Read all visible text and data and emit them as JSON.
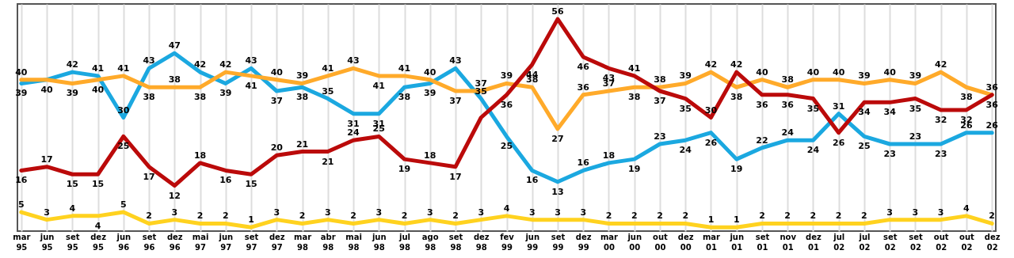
{
  "chart_data": {
    "type": "line",
    "categories": [
      "mar 95",
      "jun 95",
      "set 95",
      "dez 95",
      "jun 96",
      "set 96",
      "dez 96",
      "mai 97",
      "jun 97",
      "set 97",
      "dez 97",
      "mar 98",
      "abr 98",
      "mai 98",
      "jun 98",
      "jul 98",
      "ago 98",
      "set 98",
      "dez 98",
      "fev 99",
      "jun 99",
      "set 99",
      "dez 99",
      "mar 00",
      "jun 00",
      "out 00",
      "dez 00",
      "mar 01",
      "jun 01",
      "set 01",
      "nov 01",
      "dez 01",
      "jul 02",
      "jul 02",
      "set 02",
      "set 02",
      "out 02",
      "out 02",
      "dez 02"
    ],
    "series": [
      {
        "color": "#1ba8e0",
        "values": [
          39,
          40,
          42,
          41,
          30,
          43,
          47,
          42,
          39,
          43,
          37,
          38,
          35,
          31,
          31,
          38,
          39,
          43,
          35,
          25,
          16,
          13,
          16,
          18,
          19,
          23,
          24,
          26,
          19,
          22,
          24,
          24,
          31,
          25,
          23,
          23,
          23,
          26,
          26
        ]
      },
      {
        "color": "#ffaa2a",
        "values": [
          40,
          40,
          39,
          40,
          41,
          38,
          38,
          38,
          42,
          41,
          40,
          39,
          41,
          43,
          41,
          41,
          40,
          37,
          37,
          39,
          38,
          27,
          36,
          37,
          38,
          38,
          39,
          42,
          38,
          40,
          38,
          40,
          40,
          39,
          40,
          39,
          42,
          38,
          36
        ],
        "value_labels": [
          "40",
          null,
          "39",
          "40",
          "41",
          "38",
          "38",
          "38",
          "42",
          "41",
          "40",
          "39",
          "41",
          "43",
          "41",
          "41",
          "40",
          "37",
          "37",
          "39",
          "38",
          "27",
          "36",
          "37",
          "38",
          "38",
          "39",
          "42",
          "38",
          "40",
          "38",
          "40",
          "40",
          "39",
          "40",
          "39",
          "42",
          "38",
          "36"
        ]
      },
      {
        "color": "#bb0a0a",
        "values": [
          16,
          17,
          15,
          15,
          25,
          17,
          12,
          18,
          16,
          15,
          20,
          21,
          21,
          24,
          25,
          19,
          18,
          17,
          30,
          36,
          44,
          56,
          46,
          43,
          41,
          37,
          35,
          30,
          42,
          36,
          36,
          35,
          26,
          34,
          34,
          35,
          32,
          32,
          36
        ],
        "value_labels": [
          "16",
          "17",
          "15",
          "15",
          "25",
          "17",
          "12",
          "18",
          "16",
          "15",
          "20",
          "21",
          "21",
          "24",
          "25",
          "19",
          "18",
          "17",
          null,
          "36",
          "44",
          "56",
          "46",
          "43",
          "41",
          "37",
          "35",
          "30",
          "42",
          "36",
          "36",
          "35",
          "26",
          "34",
          "34",
          "35",
          "32",
          "32",
          "36"
        ]
      },
      {
        "color": "#ffd21f",
        "values": [
          5,
          3,
          4,
          4,
          5,
          2,
          3,
          2,
          2,
          1,
          3,
          2,
          3,
          2,
          3,
          2,
          3,
          2,
          3,
          4,
          3,
          3,
          3,
          2,
          2,
          2,
          2,
          1,
          1,
          2,
          2,
          2,
          2,
          2,
          3,
          3,
          3,
          4,
          2
        ]
      }
    ],
    "ylim": [
      0,
      60
    ],
    "tick_labels": "x",
    "grid": "x",
    "data_labels": true,
    "line_style": "solid"
  }
}
